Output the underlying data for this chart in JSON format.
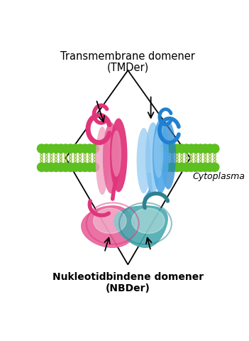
{
  "title_top_line1": "Transmembrane domener",
  "title_top_line2": "(TMDer)",
  "title_bottom_line1": "Nukleotidbindene domener",
  "title_bottom_line2": "(NBDer)",
  "cytoplasma_label": "Cytoplasma",
  "bg_color": "#ffffff",
  "pink_dark": "#E0357A",
  "pink_mid": "#E8639A",
  "pink_light": "#F0A0C0",
  "pink_pale": "#F8D0E0",
  "blue_dark": "#2080D0",
  "blue_mid": "#50A8E8",
  "blue_light": "#90C8F0",
  "blue_pale": "#C8E8F8",
  "teal_dark": "#308090",
  "teal_mid": "#4AABB0",
  "teal_light": "#80C0C8",
  "teal_pale": "#B0D8DC",
  "green_dot": "#5DBF20",
  "green_tail": "#90C040"
}
